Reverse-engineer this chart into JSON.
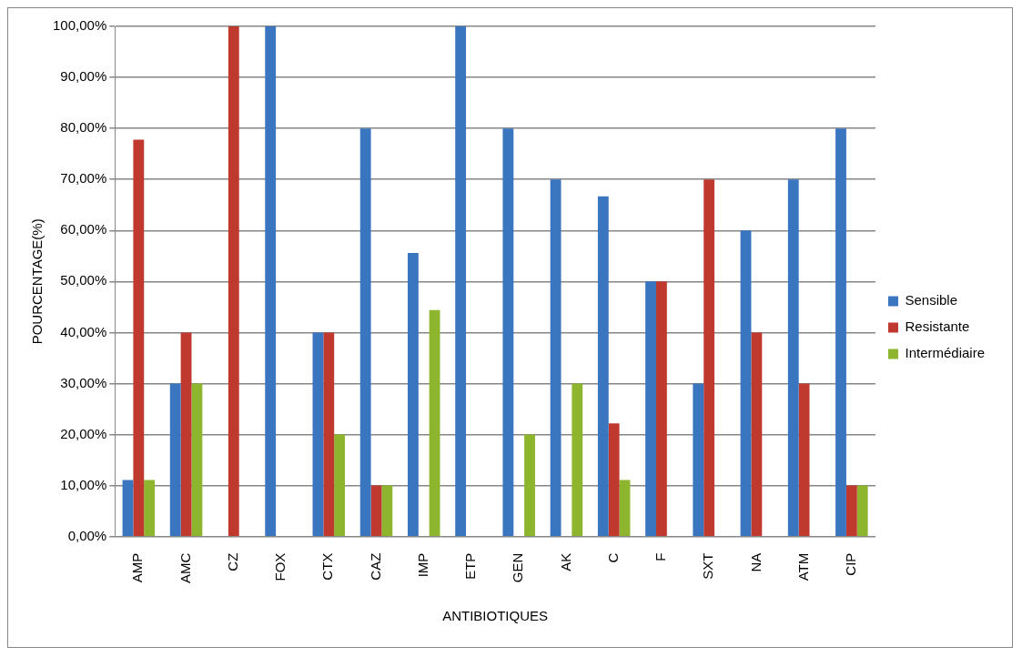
{
  "chart_data": {
    "type": "bar",
    "xlabel": "ANTIBIOTIQUES",
    "ylabel": "POURCENTAGE(%)",
    "categories": [
      "AMP",
      "AMC",
      "CZ",
      "FOX",
      "CTX",
      "CAZ",
      "IMP",
      "ETP",
      "GEN",
      "AK",
      "C",
      "F",
      "SXT",
      "NA",
      "ATM",
      "CIP"
    ],
    "series": [
      {
        "name": "Sensible",
        "color": "#3a75c0",
        "values": [
          11.1,
          30,
          0,
          100,
          40,
          80,
          55.6,
          100,
          80,
          70,
          66.7,
          50,
          30,
          60,
          70,
          80
        ]
      },
      {
        "name": "Resistante",
        "color": "#c0392f",
        "values": [
          77.8,
          40,
          100,
          0,
          40,
          10,
          0,
          0,
          0,
          0,
          22.2,
          50,
          70,
          40,
          30,
          10
        ]
      },
      {
        "name": "Intermédiaire",
        "color": "#8db52e",
        "values": [
          11.1,
          30,
          0,
          0,
          20,
          10,
          44.4,
          0,
          20,
          30,
          11.1,
          0,
          0,
          0,
          0,
          10
        ]
      }
    ],
    "ylim": [
      0,
      100
    ],
    "yticks": [
      {
        "value": 0,
        "label": "0,00%"
      },
      {
        "value": 10,
        "label": "10,00%"
      },
      {
        "value": 20,
        "label": "20,00%"
      },
      {
        "value": 30,
        "label": "30,00%"
      },
      {
        "value": 40,
        "label": "40,00%"
      },
      {
        "value": 50,
        "label": "50,00%"
      },
      {
        "value": 60,
        "label": "60,00%"
      },
      {
        "value": 70,
        "label": "70,00%"
      },
      {
        "value": 80,
        "label": "80,00%"
      },
      {
        "value": 90,
        "label": "90,00%"
      },
      {
        "value": 100,
        "label": "100,00%"
      }
    ],
    "grid": "y",
    "legend": "right"
  }
}
